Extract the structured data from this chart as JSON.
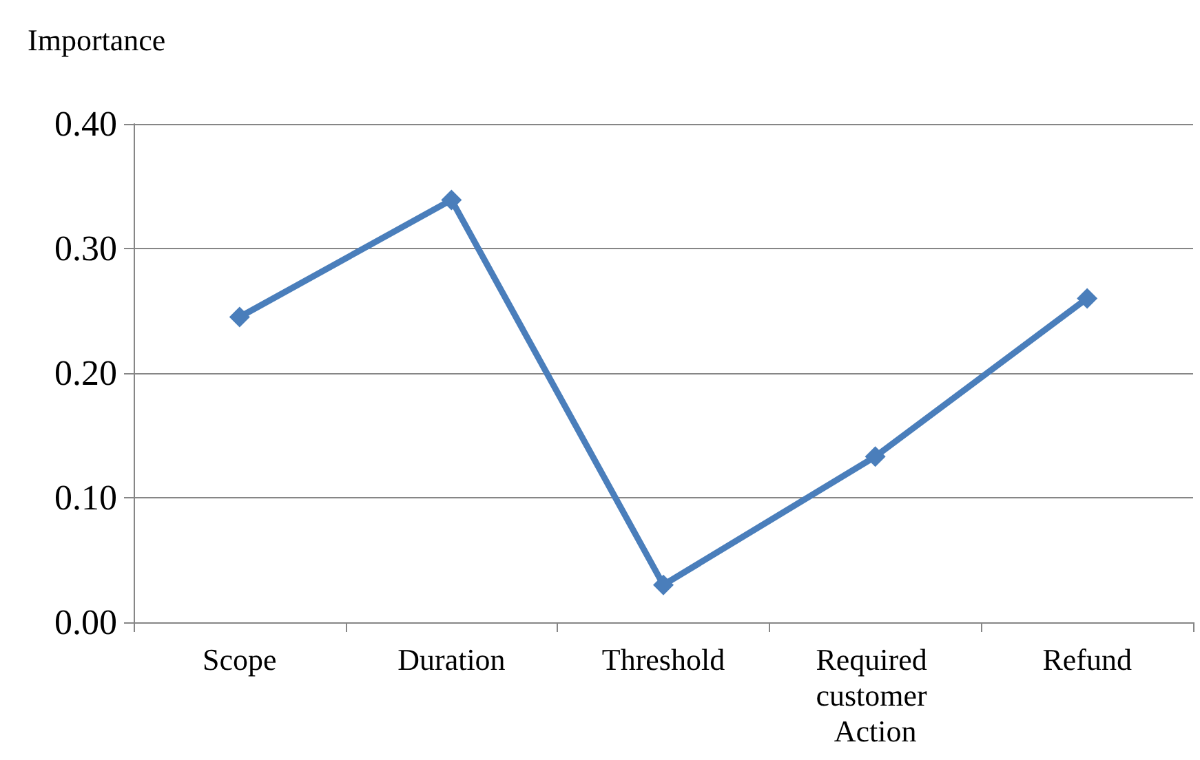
{
  "chart_data": {
    "type": "line",
    "ylabel": "Importance",
    "categories": [
      "Scope",
      "Duration",
      "Threshold",
      "Required customer Action",
      "Refund"
    ],
    "series": [
      {
        "color": "#4a7ebb",
        "values": [
          0.245,
          0.339,
          0.03,
          0.133,
          0.26
        ]
      }
    ],
    "ylim": [
      0,
      0.4
    ],
    "yticks": [
      {
        "value": 0,
        "label": "0.00"
      },
      {
        "value": 0.1,
        "label": "0.10"
      },
      {
        "value": 0.2,
        "label": "0.20"
      },
      {
        "value": 0.3,
        "label": "0.30"
      },
      {
        "value": 0.4,
        "label": "0.40"
      }
    ],
    "grid": "y",
    "marker": "diamond",
    "line_style": "solid"
  }
}
